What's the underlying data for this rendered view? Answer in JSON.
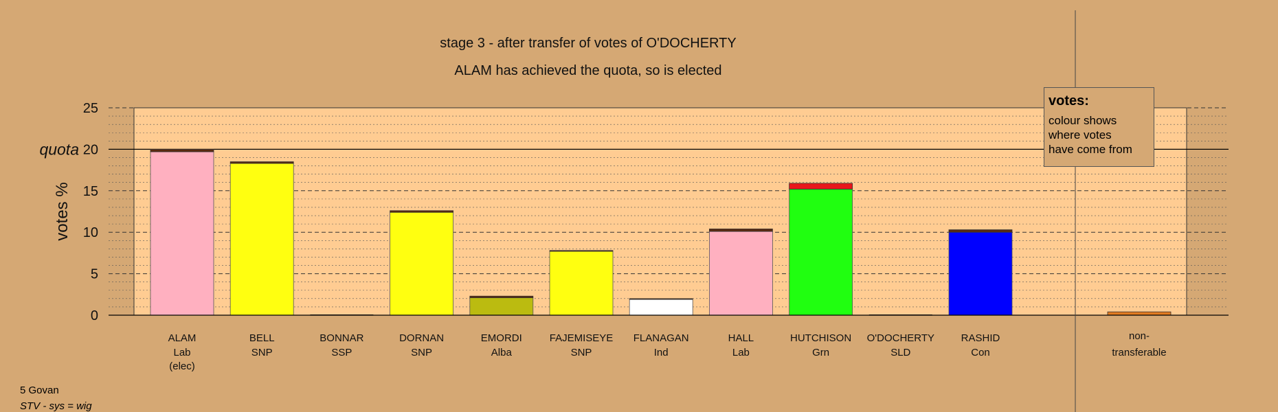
{
  "titles": {
    "line1": "stage 3 - after transfer of votes of O'DOCHERTY",
    "line2": "ALAM has achieved the quota, so is elected"
  },
  "legend": {
    "title": "votes:",
    "lines": [
      "colour shows",
      "where votes",
      "have come from"
    ]
  },
  "footer": {
    "ward": "5 Govan",
    "system": "STV - sys = wig"
  },
  "colors": {
    "background": "#d5a874",
    "plot_area": "#ffcc92",
    "transfer": "#e8161b",
    "transfer_dark": "#5a2a10",
    "nontransferable": "#e07a20"
  },
  "chart_data": {
    "type": "bar",
    "ylabel": "votes %",
    "ylim": [
      0,
      25
    ],
    "yticks": [
      "0",
      "5",
      "10",
      "15",
      "20",
      "25"
    ],
    "quota": 20,
    "quota_label": "quota",
    "grid": true,
    "candidates": [
      {
        "name": "ALAM",
        "party": "Lab",
        "note": "(elec)",
        "base": 19.7,
        "transfer": 0.3,
        "color": "#ffb0c0"
      },
      {
        "name": "BELL",
        "party": "SNP",
        "note": "",
        "base": 18.3,
        "transfer": 0.2,
        "color": "#ffff10"
      },
      {
        "name": "BONNAR",
        "party": "SSP",
        "note": "",
        "base": 0,
        "transfer": 0,
        "color": "#ff4040"
      },
      {
        "name": "DORNAN",
        "party": "SNP",
        "note": "",
        "base": 12.4,
        "transfer": 0.2,
        "color": "#ffff10"
      },
      {
        "name": "EMORDI",
        "party": "Alba",
        "note": "",
        "base": 2.1,
        "transfer": 0.2,
        "color": "#bbbb10"
      },
      {
        "name": "FAJEMISEYE",
        "party": "SNP",
        "note": "",
        "base": 7.7,
        "transfer": 0.1,
        "color": "#ffff10"
      },
      {
        "name": "FLANAGAN",
        "party": "Ind",
        "note": "",
        "base": 1.9,
        "transfer": 0.1,
        "color": "#ffffff"
      },
      {
        "name": "HALL",
        "party": "Lab",
        "note": "",
        "base": 10.1,
        "transfer": 0.3,
        "color": "#ffb0c0"
      },
      {
        "name": "HUTCHISON",
        "party": "Grn",
        "note": "",
        "base": 15.2,
        "transfer": 0.7,
        "color": "#20ff10"
      },
      {
        "name": "O'DOCHERTY",
        "party": "SLD",
        "note": "",
        "base": 0,
        "transfer": 0,
        "color": "#ffaa00"
      },
      {
        "name": "RASHID",
        "party": "Con",
        "note": "",
        "base": 10.0,
        "transfer": 0.3,
        "color": "#0000ff"
      }
    ],
    "nontransferable": {
      "label1": "non-",
      "label2": "transferable",
      "value": 0.4
    }
  }
}
